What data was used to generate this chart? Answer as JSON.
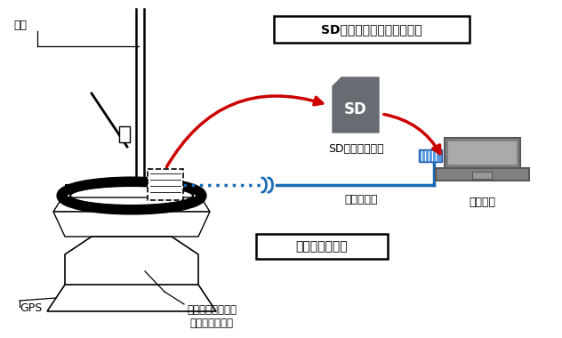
{
  "bg_color": "#ffffff",
  "red_arrow_color": "#cc0000",
  "blue_line_color": "#1a6bb5",
  "sd_gray": "#666c72",
  "pc_gray": "#808080",
  "pc_dark": "#585858",
  "label_hontai": "本体",
  "label_gps": "GPS",
  "label_rogosuki": "ロゴスキーコイル\n（電流センサ）",
  "label_sd_card": "SDメモリカード",
  "label_pasokon": "パソコン",
  "label_data_tsushin": "データ通信",
  "box1_text": "SDメモリカードによる収集",
  "box2_text": "遠隔データ収集",
  "sd_text": "SD"
}
